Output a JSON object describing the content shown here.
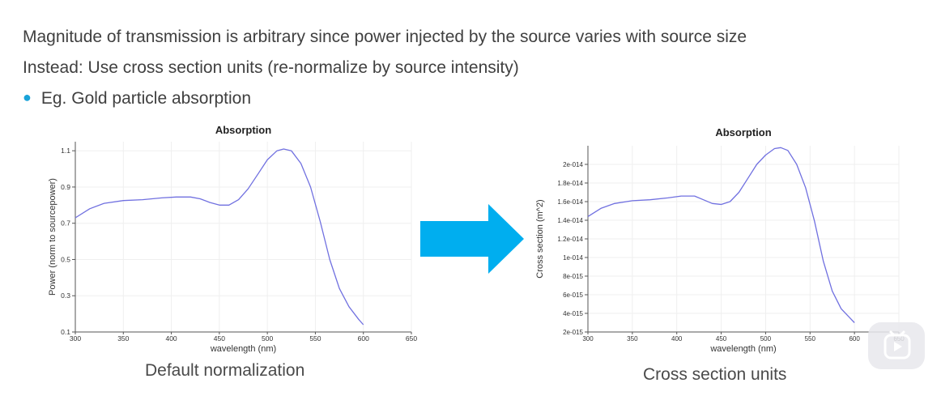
{
  "slide": {
    "line1": "Magnitude of transmission is arbitrary since power injected by the source varies with source size",
    "line2": "Instead: Use cross section units (re-normalize by source intensity)",
    "bullet": "Eg. Gold particle absorption",
    "caption_left": "Default normalization",
    "caption_right": "Cross section units"
  },
  "colors": {
    "accent": "#00aeef",
    "bullet": "#1aa3d9",
    "line": "#7070e0"
  },
  "icons": {
    "arrow": "arrow-right-icon",
    "play": "play-icon"
  },
  "chart_data": [
    {
      "type": "line",
      "title": "Absorption",
      "xlabel": "wavelength (nm)",
      "ylabel": "Power (norm to sourcepower)",
      "xlim": [
        300,
        650
      ],
      "ylim": [
        0.1,
        1.15
      ],
      "x_ticks": [
        "300",
        "350",
        "400",
        "450",
        "500",
        "550",
        "600",
        "650"
      ],
      "y_ticks": [
        "0.1",
        "0.3",
        "0.5",
        "0.7",
        "0.9",
        "1.1"
      ],
      "grid": true,
      "series": [
        {
          "x": [
            300,
            315,
            330,
            350,
            370,
            390,
            405,
            420,
            430,
            440,
            450,
            460,
            470,
            480,
            490,
            500,
            510,
            517,
            525,
            535,
            545,
            555,
            565,
            575,
            585,
            595,
            600
          ],
          "y": [
            0.73,
            0.78,
            0.81,
            0.825,
            0.83,
            0.84,
            0.845,
            0.845,
            0.835,
            0.815,
            0.8,
            0.8,
            0.83,
            0.89,
            0.97,
            1.05,
            1.1,
            1.11,
            1.1,
            1.03,
            0.9,
            0.71,
            0.5,
            0.34,
            0.24,
            0.17,
            0.14
          ]
        }
      ]
    },
    {
      "type": "line",
      "title": "Absorption",
      "xlabel": "wavelength (nm)",
      "ylabel": "Cross section (m^2)",
      "xlim": [
        300,
        650
      ],
      "ylim": [
        2e-15,
        2.2e-14
      ],
      "x_ticks": [
        "300",
        "350",
        "400",
        "450",
        "500",
        "550",
        "600",
        "650"
      ],
      "y_ticks": [
        "2e-015",
        "4e-015",
        "6e-015",
        "8e-015",
        "1e-014",
        "1.2e-014",
        "1.4e-014",
        "1.6e-014",
        "1.8e-014",
        "2e-014"
      ],
      "grid": true,
      "series": [
        {
          "x": [
            300,
            315,
            330,
            350,
            370,
            390,
            405,
            420,
            430,
            440,
            450,
            460,
            470,
            480,
            490,
            500,
            510,
            517,
            525,
            535,
            545,
            555,
            565,
            575,
            585,
            595,
            600
          ],
          "y": [
            1.44e-14,
            1.53e-14,
            1.58e-14,
            1.61e-14,
            1.62e-14,
            1.64e-14,
            1.66e-14,
            1.66e-14,
            1.62e-14,
            1.58e-14,
            1.57e-14,
            1.6e-14,
            1.7e-14,
            1.85e-14,
            2e-14,
            2.1e-14,
            2.17e-14,
            2.18e-14,
            2.15e-14,
            2e-14,
            1.75e-14,
            1.39e-14,
            9.6e-15,
            6.4e-15,
            4.5e-15,
            3.5e-15,
            3e-15
          ]
        }
      ]
    }
  ]
}
